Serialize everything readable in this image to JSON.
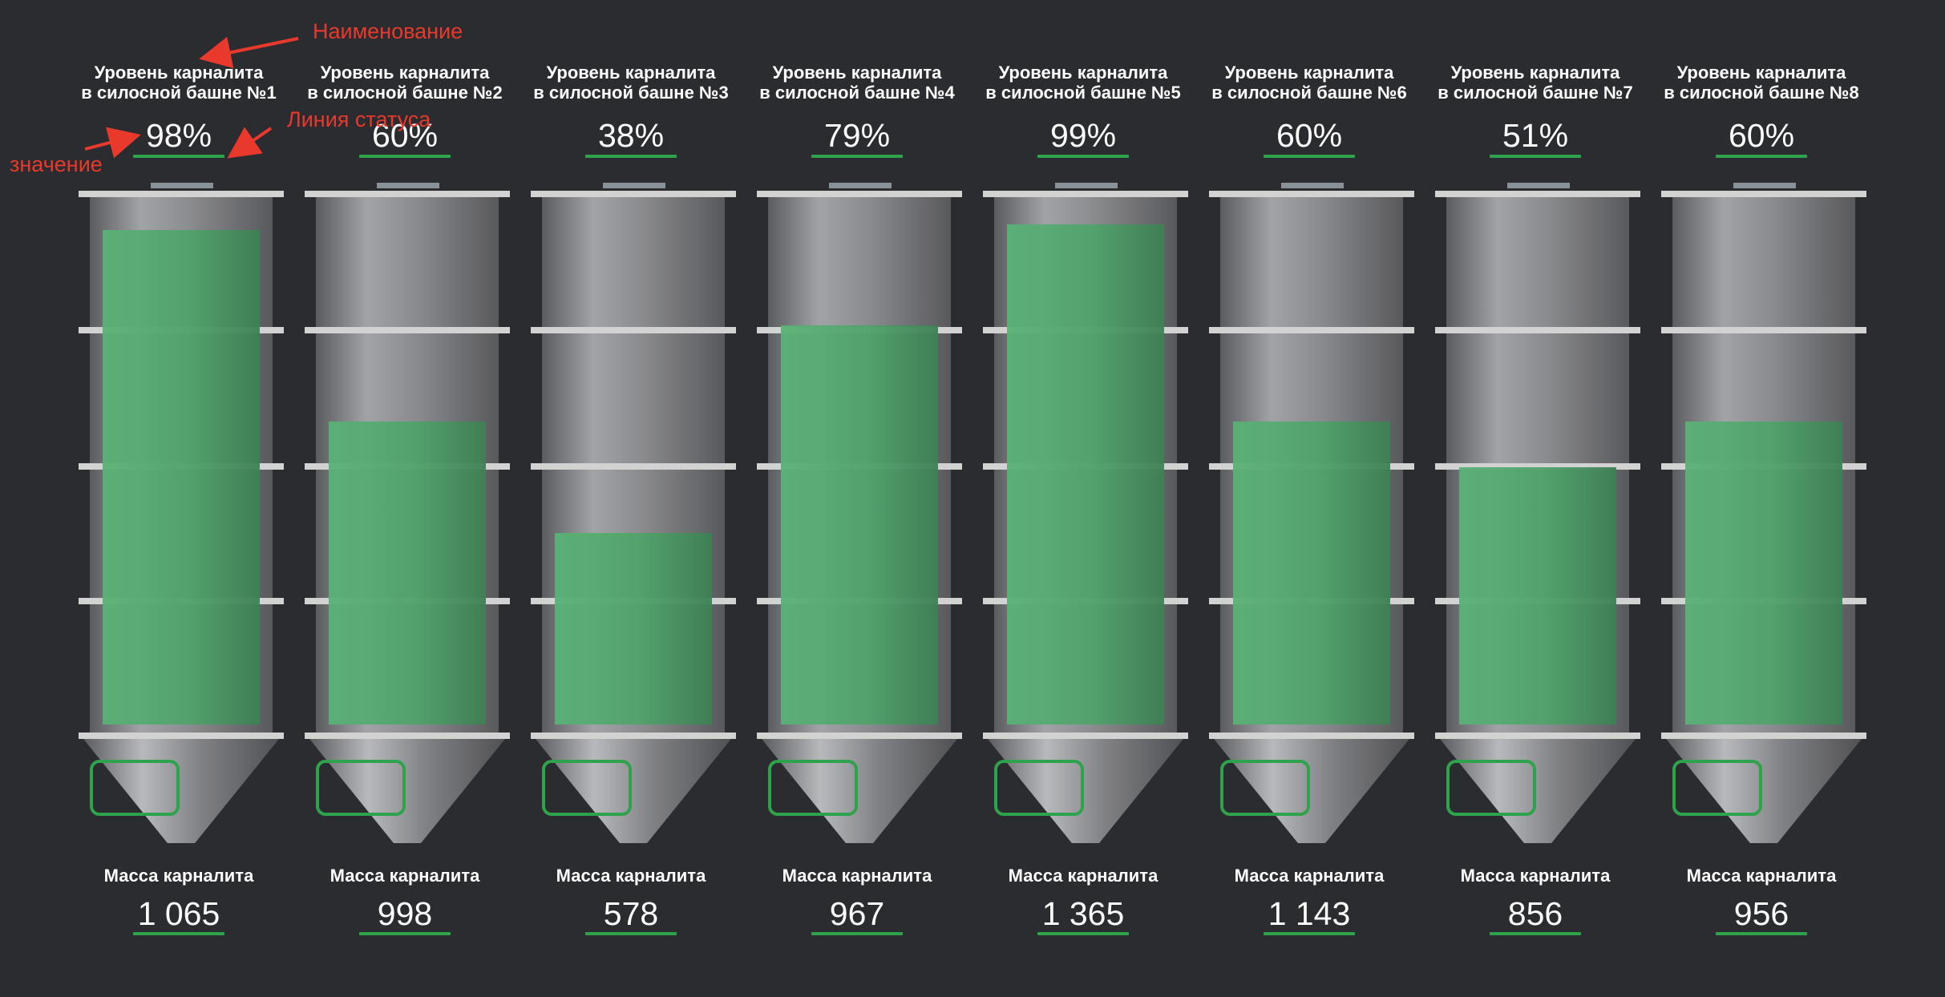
{
  "annotations": {
    "name_label": "Наименование",
    "status_line_label": "Линия статуса",
    "value_label": "значение",
    "color": "#e8392c"
  },
  "colors": {
    "background": "#2b2c2f",
    "status_green": "#2fa24c",
    "fill_green": "#5ab276"
  },
  "silos": [
    {
      "title_line1": "Уровень карналита",
      "title_line2": "в силосной башне №1",
      "level_text": "98%",
      "level": 0.98,
      "mass_label": "Масса карналита",
      "mass": "1 065"
    },
    {
      "title_line1": "Уровень карналита",
      "title_line2": "в силосной башне №2",
      "level_text": "60%",
      "level": 0.6,
      "mass_label": "Масса карналита",
      "mass": "998"
    },
    {
      "title_line1": "Уровень карналита",
      "title_line2": "в силосной башне №3",
      "level_text": "38%",
      "level": 0.38,
      "mass_label": "Масса карналита",
      "mass": "578"
    },
    {
      "title_line1": "Уровень карналита",
      "title_line2": "в силосной башне №4",
      "level_text": "79%",
      "level": 0.79,
      "mass_label": "Масса карналита",
      "mass": "967"
    },
    {
      "title_line1": "Уровень карналита",
      "title_line2": "в силосной башне №5",
      "level_text": "99%",
      "level": 0.99,
      "mass_label": "Масса карналита",
      "mass": "1 365"
    },
    {
      "title_line1": "Уровень карналита",
      "title_line2": "в силосной башне №6",
      "level_text": "60%",
      "level": 0.6,
      "mass_label": "Масса карналита",
      "mass": "1 143"
    },
    {
      "title_line1": "Уровень карналита",
      "title_line2": "в силосной башне №7",
      "level_text": "51%",
      "level": 0.51,
      "mass_label": "Масса карналита",
      "mass": "856"
    },
    {
      "title_line1": "Уровень карналита",
      "title_line2": "в силосной башне №8",
      "level_text": "60%",
      "level": 0.6,
      "mass_label": "Масса карналита",
      "mass": "956"
    }
  ]
}
